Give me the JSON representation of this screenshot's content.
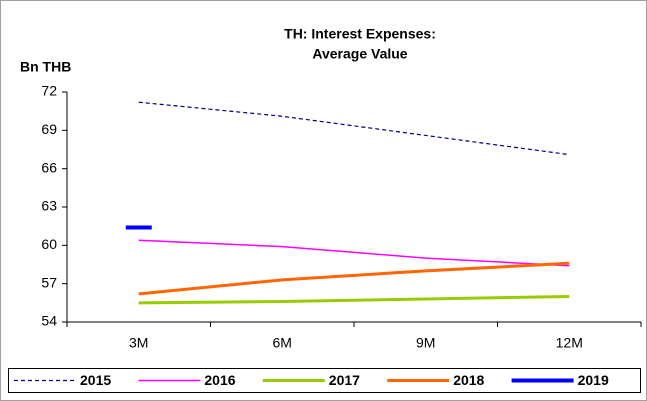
{
  "chart_data": {
    "type": "line",
    "title": [
      "TH: Interest Expenses:",
      "Average Value"
    ],
    "y_label": "Bn THB",
    "categories": [
      "3M",
      "6M",
      "9M",
      "12M"
    ],
    "ylim": [
      54,
      72
    ],
    "yticks": [
      54,
      57,
      60,
      63,
      66,
      69,
      72
    ],
    "legend": "bottom",
    "series": [
      {
        "name": "2015",
        "color": "#000080",
        "dashed": true,
        "width": 1.2,
        "values": [
          71.2,
          70.1,
          68.6,
          67.1
        ]
      },
      {
        "name": "2016",
        "color": "#ff00ff",
        "dashed": false,
        "width": 1.5,
        "values": [
          60.4,
          59.9,
          59.0,
          58.4
        ]
      },
      {
        "name": "2017",
        "color": "#99cc00",
        "dashed": false,
        "width": 3,
        "values": [
          55.5,
          55.6,
          55.8,
          56.0
        ]
      },
      {
        "name": "2018",
        "color": "#ff6600",
        "dashed": false,
        "width": 3,
        "values": [
          56.2,
          57.3,
          58.0,
          58.6
        ]
      },
      {
        "name": "2019",
        "color": "#0000ff",
        "dashed": false,
        "width": 4,
        "values": [
          61.4,
          null,
          null,
          null
        ]
      }
    ]
  }
}
